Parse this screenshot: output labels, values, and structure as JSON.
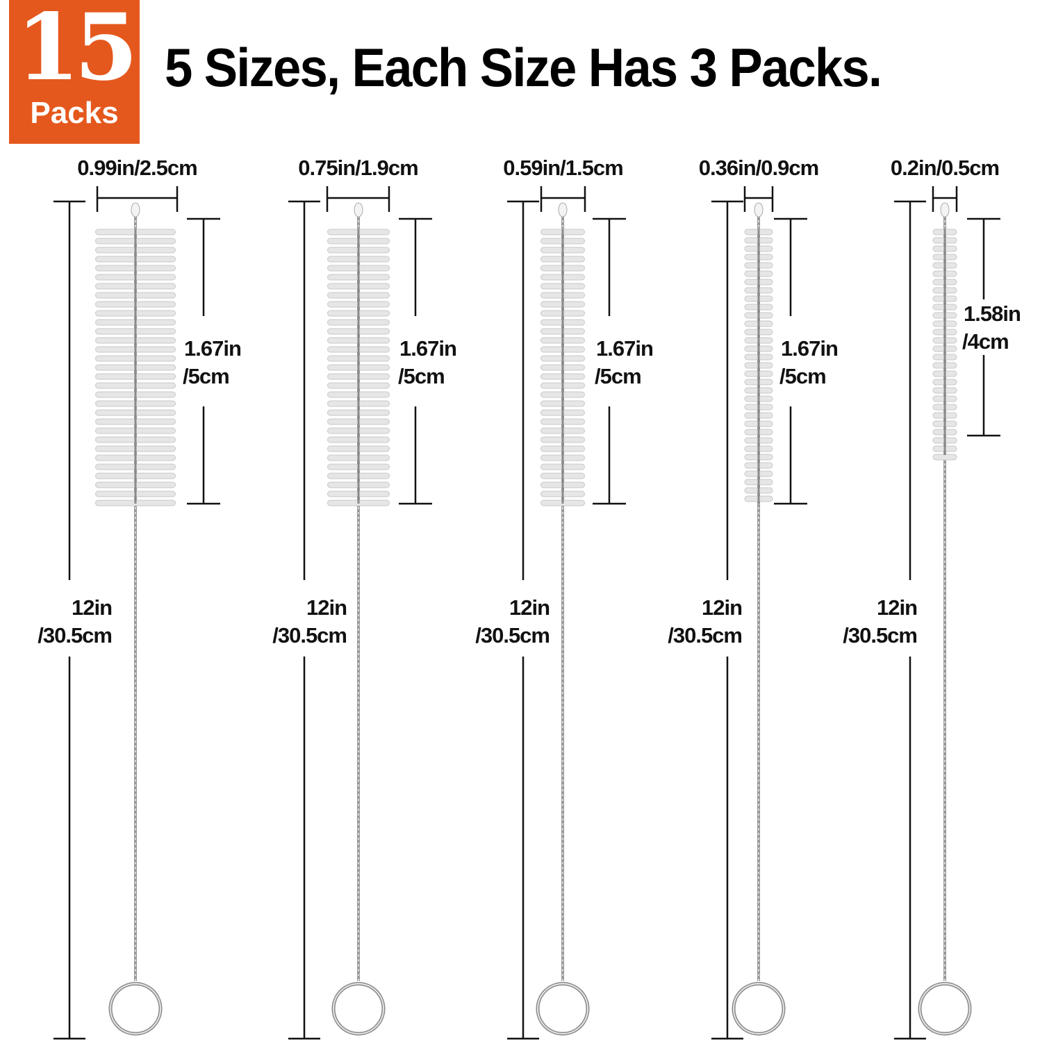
{
  "badge": {
    "count": "15",
    "unit": "Packs",
    "color": "#e5581d"
  },
  "headline": "5 Sizes, Each Size Has 3 Packs.",
  "brushes": [
    {
      "diameter": "0.99in/2.5cm",
      "head_length_in": "1.67in",
      "head_length_cm": "/5cm",
      "total_length_in": "12in",
      "total_length_cm": "/30.5cm"
    },
    {
      "diameter": "0.75in/1.9cm",
      "head_length_in": "1.67in",
      "head_length_cm": "/5cm",
      "total_length_in": "12in",
      "total_length_cm": "/30.5cm"
    },
    {
      "diameter": "0.59in/1.5cm",
      "head_length_in": "1.67in",
      "head_length_cm": "/5cm",
      "total_length_in": "12in",
      "total_length_cm": "/30.5cm"
    },
    {
      "diameter": "0.36in/0.9cm",
      "head_length_in": "1.67in",
      "head_length_cm": "/5cm",
      "total_length_in": "12in",
      "total_length_cm": "/30.5cm"
    },
    {
      "diameter": "0.2in/0.5cm",
      "head_length_in": "1.58in",
      "head_length_cm": "/4cm",
      "total_length_in": "12in",
      "total_length_cm": "/30.5cm"
    }
  ]
}
